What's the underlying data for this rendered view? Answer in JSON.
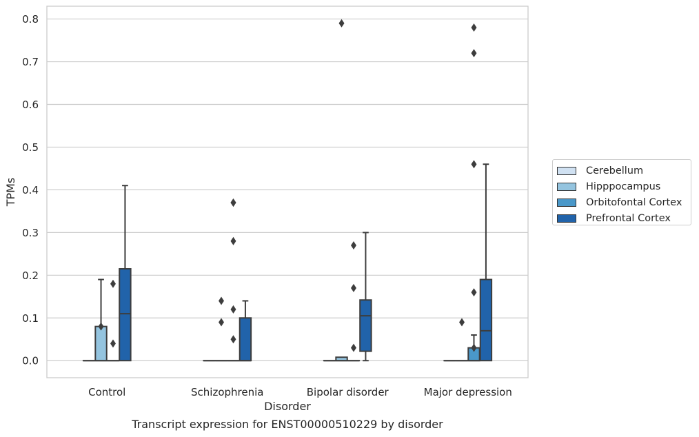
{
  "chart_data": {
    "type": "box",
    "xlabel": "Disorder",
    "ylabel": "TPMs",
    "caption": "Transcript expression for ENST00000510229 by disorder",
    "ylim": [
      -0.04,
      0.83
    ],
    "yticks": [
      0.0,
      0.1,
      0.2,
      0.3,
      0.4,
      0.5,
      0.6,
      0.7,
      0.8
    ],
    "ytick_labels": [
      "0.0",
      "0.1",
      "0.2",
      "0.3",
      "0.4",
      "0.5",
      "0.6",
      "0.7",
      "0.8"
    ],
    "grid": true,
    "legend_position": "right",
    "categories": [
      "Control",
      "Schizophrenia",
      "Bipolar disorder",
      "Major depression"
    ],
    "series": [
      {
        "name": "Cerebellum",
        "color": "#d0e1f2",
        "boxes": [
          {
            "q1": 0,
            "median": 0,
            "q3": 0,
            "whisker_low": 0,
            "whisker_high": 0,
            "outliers": []
          },
          {
            "q1": 0,
            "median": 0,
            "q3": 0,
            "whisker_low": 0,
            "whisker_high": 0,
            "outliers": []
          },
          {
            "q1": 0,
            "median": 0,
            "q3": 0,
            "whisker_low": 0,
            "whisker_high": 0,
            "outliers": []
          },
          {
            "q1": 0,
            "median": 0,
            "q3": 0,
            "whisker_low": 0,
            "whisker_high": 0,
            "outliers": []
          }
        ]
      },
      {
        "name": "Hipppocampus",
        "color": "#94c4df",
        "boxes": [
          {
            "q1": 0,
            "median": 0,
            "q3": 0.08,
            "whisker_low": 0,
            "whisker_high": 0.19,
            "outliers": [
              0.08
            ]
          },
          {
            "q1": 0,
            "median": 0,
            "q3": 0,
            "whisker_low": 0,
            "whisker_high": 0,
            "outliers": [
              0.09,
              0.14
            ]
          },
          {
            "q1": 0,
            "median": 0,
            "q3": 0.008,
            "whisker_low": 0,
            "whisker_high": 0.008,
            "outliers": [
              0.79
            ]
          },
          {
            "q1": 0,
            "median": 0,
            "q3": 0,
            "whisker_low": 0,
            "whisker_high": 0,
            "outliers": [
              0.09
            ]
          }
        ]
      },
      {
        "name": "Orbitofontal Cortex",
        "color": "#4a98c9",
        "boxes": [
          {
            "q1": 0,
            "median": 0,
            "q3": 0,
            "whisker_low": 0,
            "whisker_high": 0,
            "outliers": [
              0.04,
              0.18
            ]
          },
          {
            "q1": 0,
            "median": 0,
            "q3": 0,
            "whisker_low": 0,
            "whisker_high": 0,
            "outliers": [
              0.05,
              0.12,
              0.28,
              0.37,
              0.37
            ]
          },
          {
            "q1": 0,
            "median": 0,
            "q3": 0,
            "whisker_low": 0,
            "whisker_high": 0,
            "outliers": [
              0.03,
              0.17,
              0.27
            ]
          },
          {
            "q1": 0,
            "median": 0,
            "q3": 0.03,
            "whisker_low": 0,
            "whisker_high": 0.06,
            "outliers": [
              0.03,
              0.16,
              0.46,
              0.72,
              0.78
            ]
          }
        ]
      },
      {
        "name": "Prefrontal Cortex",
        "color": "#2163aa",
        "boxes": [
          {
            "q1": 0,
            "median": 0.11,
            "q3": 0.215,
            "whisker_low": 0,
            "whisker_high": 0.41,
            "outliers": []
          },
          {
            "q1": 0,
            "median": 0,
            "q3": 0.1,
            "whisker_low": 0,
            "whisker_high": 0.14,
            "outliers": []
          },
          {
            "q1": 0.022,
            "median": 0.105,
            "q3": 0.142,
            "whisker_low": 0,
            "whisker_high": 0.3,
            "outliers": []
          },
          {
            "q1": 0,
            "median": 0.07,
            "q3": 0.19,
            "whisker_low": 0,
            "whisker_high": 0.46,
            "outliers": []
          }
        ]
      }
    ]
  }
}
